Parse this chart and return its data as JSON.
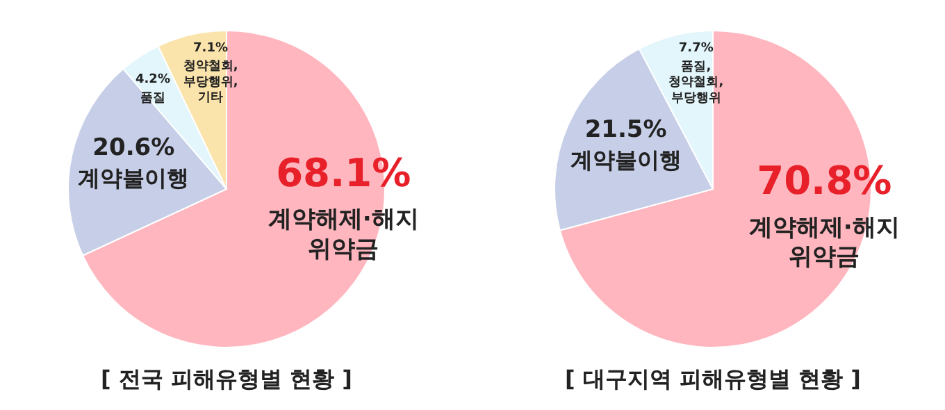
{
  "chart_data": [
    {
      "type": "pie",
      "title": "[ 전국 피해유형별 현황 ]",
      "categories": [
        "계약해제·해지 위약금",
        "계약불이행",
        "품질",
        "청약철회, 부당행위, 기타"
      ],
      "values": [
        68.1,
        20.6,
        4.2,
        7.1
      ],
      "colors": [
        "#ffb6be",
        "#c7cfe8",
        "#e2f6fb",
        "#fbe4ab"
      ],
      "value_labels": [
        "68.1%",
        "20.6%",
        "4.2%",
        "7.1%"
      ]
    },
    {
      "type": "pie",
      "title": "[ 대구지역 피해유형별 현황 ]",
      "categories": [
        "계약해제·해지 위약금",
        "계약불이행",
        "품질, 청약철회, 부당행위"
      ],
      "values": [
        70.8,
        21.5,
        7.7
      ],
      "colors": [
        "#ffb6be",
        "#c7cfe8",
        "#e2f6fb"
      ],
      "value_labels": [
        "70.8%",
        "21.5%",
        "7.7%"
      ]
    }
  ]
}
